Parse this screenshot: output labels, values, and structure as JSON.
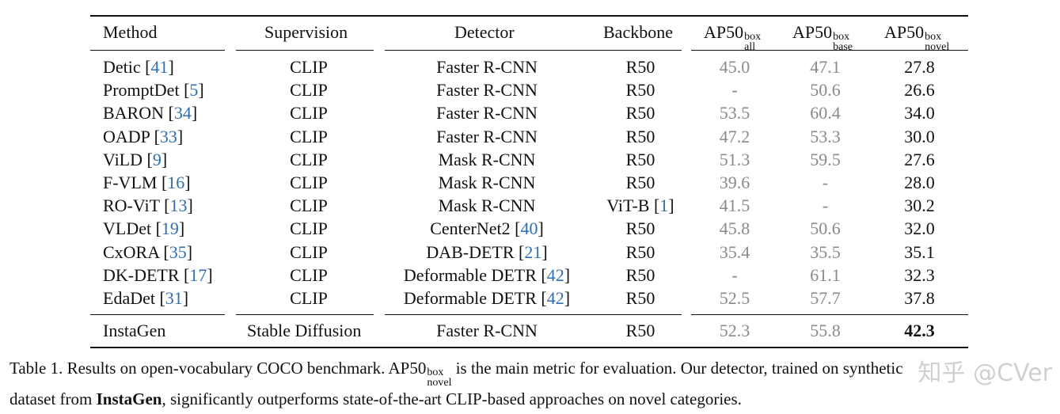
{
  "header": {
    "method": "Method",
    "supervision": "Supervision",
    "detector": "Detector",
    "backbone": "Backbone",
    "ap_main": "AP50",
    "ap_sup": "box",
    "ap_all_sub": "all",
    "ap_base_sub": "base",
    "ap_novel_sub": "novel"
  },
  "rows": [
    {
      "method": "Detic",
      "ref": "41",
      "supervision": "CLIP",
      "detector": "Faster R-CNN",
      "det_ref": "",
      "backbone": "R50",
      "bb_ref": "",
      "all": "45.0",
      "base": "47.1",
      "novel": "27.8"
    },
    {
      "method": "PromptDet",
      "ref": "5",
      "supervision": "CLIP",
      "detector": "Faster R-CNN",
      "det_ref": "",
      "backbone": "R50",
      "bb_ref": "",
      "all": "-",
      "base": "50.6",
      "novel": "26.6"
    },
    {
      "method": "BARON",
      "ref": "34",
      "supervision": "CLIP",
      "detector": "Faster R-CNN",
      "det_ref": "",
      "backbone": "R50",
      "bb_ref": "",
      "all": "53.5",
      "base": "60.4",
      "novel": "34.0"
    },
    {
      "method": "OADP",
      "ref": "33",
      "supervision": "CLIP",
      "detector": "Faster R-CNN",
      "det_ref": "",
      "backbone": "R50",
      "bb_ref": "",
      "all": "47.2",
      "base": "53.3",
      "novel": "30.0"
    },
    {
      "method": "ViLD",
      "ref": "9",
      "supervision": "CLIP",
      "detector": "Mask R-CNN",
      "det_ref": "",
      "backbone": "R50",
      "bb_ref": "",
      "all": "51.3",
      "base": "59.5",
      "novel": "27.6"
    },
    {
      "method": "F-VLM",
      "ref": "16",
      "supervision": "CLIP",
      "detector": "Mask R-CNN",
      "det_ref": "",
      "backbone": "R50",
      "bb_ref": "",
      "all": "39.6",
      "base": "-",
      "novel": "28.0"
    },
    {
      "method": "RO-ViT",
      "ref": "13",
      "supervision": "CLIP",
      "detector": "Mask R-CNN",
      "det_ref": "",
      "backbone": "ViT-B",
      "bb_ref": "1",
      "all": "41.5",
      "base": "-",
      "novel": "30.2"
    },
    {
      "method": "VLDet",
      "ref": "19",
      "supervision": "CLIP",
      "detector": "CenterNet2",
      "det_ref": "40",
      "backbone": "R50",
      "bb_ref": "",
      "all": "45.8",
      "base": "50.6",
      "novel": "32.0"
    },
    {
      "method": "CxORA",
      "ref": "35",
      "supervision": "CLIP",
      "detector": "DAB-DETR",
      "det_ref": "21",
      "backbone": "R50",
      "bb_ref": "",
      "all": "35.4",
      "base": "35.5",
      "novel": "35.1"
    },
    {
      "method": "DK-DETR",
      "ref": "17",
      "supervision": "CLIP",
      "detector": "Deformable DETR",
      "det_ref": "42",
      "backbone": "R50",
      "bb_ref": "",
      "all": "-",
      "base": "61.1",
      "novel": "32.3"
    },
    {
      "method": "EdaDet",
      "ref": "31",
      "supervision": "CLIP",
      "detector": "Deformable DETR",
      "det_ref": "42",
      "backbone": "R50",
      "bb_ref": "",
      "all": "52.5",
      "base": "57.7",
      "novel": "37.8"
    }
  ],
  "final_row": {
    "method": "InstaGen",
    "supervision": "Stable Diffusion",
    "detector": "Faster R-CNN",
    "backbone": "R50",
    "all": "52.3",
    "base": "55.8",
    "novel": "42.3"
  },
  "caption": {
    "part1": "Table 1. Results on open-vocabulary COCO benchmark.  AP50",
    "sup": "box",
    "sub": "novel",
    "part2": " is the main metric for evaluation. Our detector, trained on synthetic",
    "line2_a": "dataset from ",
    "bold": "InstaGen",
    "line2_b": ", significantly outperforms state-of-the-art CLIP-based approaches on novel categories."
  },
  "watermark": "知乎 @CVer"
}
